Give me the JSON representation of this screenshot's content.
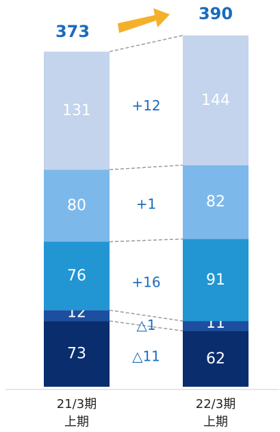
{
  "chart_data": {
    "type": "bar",
    "stacked": true,
    "categories": [
      {
        "line1": "21/3期",
        "line2": "上期"
      },
      {
        "line1": "22/3期",
        "line2": "上期"
      }
    ],
    "series": [
      {
        "values": [
          73,
          62
        ],
        "color": "#0a2d6e"
      },
      {
        "values": [
          12,
          11
        ],
        "color": "#1c4fa0"
      },
      {
        "values": [
          76,
          91
        ],
        "color": "#2196d3"
      },
      {
        "values": [
          80,
          82
        ],
        "color": "#7db8ea"
      },
      {
        "values": [
          131,
          144
        ],
        "color": "#c3d4ec"
      }
    ],
    "totals": [
      "373",
      "390"
    ],
    "deltas": [
      "△11",
      "△1",
      "+16",
      "+1",
      "+12"
    ],
    "total_color": "#1a6bbd",
    "delta_color": "#1a6bbd",
    "arrow_color": "#f5b02a",
    "connector_color": "#999999",
    "ylim": [
      0,
      390
    ]
  }
}
